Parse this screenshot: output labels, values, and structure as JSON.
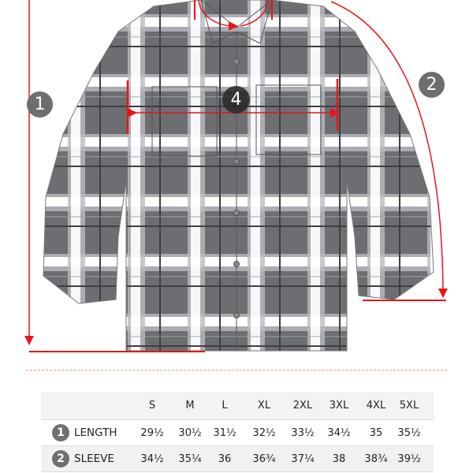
{
  "badges": {
    "length": "1",
    "sleeve": "2",
    "chest": "4"
  },
  "colors": {
    "accent": "#e8141b",
    "badge": "#6e6e6e",
    "plaid_dark": "#6c6e71",
    "plaid_light": "#ffffff"
  },
  "size_chart": {
    "sizes": [
      "S",
      "M",
      "L",
      "XL",
      "2XL",
      "3XL",
      "4XL",
      "5XL"
    ],
    "rows": [
      {
        "number": "1",
        "label": "LENGTH",
        "values": [
          "29½",
          "30½",
          "31½",
          "32½",
          "33½",
          "34½",
          "35",
          "35½"
        ]
      },
      {
        "number": "2",
        "label": "SLEEVE",
        "values": [
          "34½",
          "35¼",
          "36",
          "36¾",
          "37¼",
          "38",
          "38¾",
          "39½"
        ]
      }
    ]
  }
}
